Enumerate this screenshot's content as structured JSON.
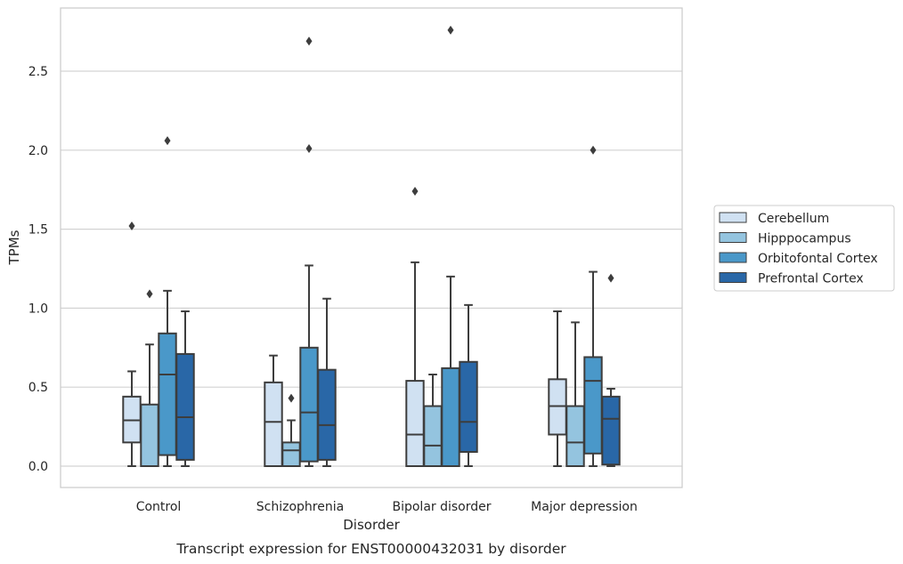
{
  "chart_data": {
    "type": "boxplot",
    "caption": "Transcript expression for ENST00000432031 by disorder",
    "xlabel": "Disorder",
    "ylabel": "TPMs",
    "ylim": [
      -0.13,
      2.9
    ],
    "yticks": [
      0.0,
      0.5,
      1.0,
      1.5,
      2.0,
      2.5
    ],
    "ytick_labels": [
      "0.0",
      "0.5",
      "1.0",
      "1.5",
      "2.0",
      "2.5"
    ],
    "grid": "horizontal",
    "legend_position": "right",
    "categories": [
      "Control",
      "Schizophrenia",
      "Bipolar disorder",
      "Major depression"
    ],
    "series": [
      {
        "name": "Cerebellum",
        "color": "#d0e1f2",
        "boxes": [
          {
            "whisker_low": 0.0,
            "q1": 0.15,
            "median": 0.29,
            "q3": 0.44,
            "whisker_high": 0.6,
            "outliers": [
              1.52
            ]
          },
          {
            "whisker_low": 0.0,
            "q1": 0.0,
            "median": 0.28,
            "q3": 0.53,
            "whisker_high": 0.7,
            "outliers": []
          },
          {
            "whisker_low": 0.0,
            "q1": 0.0,
            "median": 0.2,
            "q3": 0.54,
            "whisker_high": 1.29,
            "outliers": [
              1.74
            ]
          },
          {
            "whisker_low": 0.0,
            "q1": 0.2,
            "median": 0.38,
            "q3": 0.55,
            "whisker_high": 0.98,
            "outliers": []
          }
        ]
      },
      {
        "name": "Hipppocampus",
        "color": "#94c4df",
        "boxes": [
          {
            "whisker_low": 0.0,
            "q1": 0.0,
            "median": 0.0,
            "q3": 0.39,
            "whisker_high": 0.77,
            "outliers": [
              1.09
            ]
          },
          {
            "whisker_low": 0.0,
            "q1": 0.0,
            "median": 0.1,
            "q3": 0.15,
            "whisker_high": 0.29,
            "outliers": [
              0.43
            ]
          },
          {
            "whisker_low": 0.0,
            "q1": 0.0,
            "median": 0.13,
            "q3": 0.38,
            "whisker_high": 0.58,
            "outliers": []
          },
          {
            "whisker_low": 0.0,
            "q1": 0.0,
            "median": 0.15,
            "q3": 0.38,
            "whisker_high": 0.91,
            "outliers": []
          }
        ]
      },
      {
        "name": "Orbitofontal Cortex",
        "color": "#4a98c9",
        "boxes": [
          {
            "whisker_low": 0.0,
            "q1": 0.07,
            "median": 0.58,
            "q3": 0.84,
            "whisker_high": 1.11,
            "outliers": [
              2.06
            ]
          },
          {
            "whisker_low": 0.0,
            "q1": 0.03,
            "median": 0.34,
            "q3": 0.75,
            "whisker_high": 1.27,
            "outliers": [
              2.01,
              2.69
            ]
          },
          {
            "whisker_low": 0.0,
            "q1": 0.0,
            "median": 0.0,
            "q3": 0.62,
            "whisker_high": 1.2,
            "outliers": [
              2.76
            ]
          },
          {
            "whisker_low": 0.0,
            "q1": 0.08,
            "median": 0.54,
            "q3": 0.69,
            "whisker_high": 1.23,
            "outliers": [
              2.0
            ]
          }
        ]
      },
      {
        "name": "Prefrontal Cortex",
        "color": "#2967a7",
        "boxes": [
          {
            "whisker_low": 0.0,
            "q1": 0.04,
            "median": 0.31,
            "q3": 0.71,
            "whisker_high": 0.98,
            "outliers": []
          },
          {
            "whisker_low": 0.0,
            "q1": 0.04,
            "median": 0.26,
            "q3": 0.61,
            "whisker_high": 1.06,
            "outliers": []
          },
          {
            "whisker_low": 0.0,
            "q1": 0.09,
            "median": 0.28,
            "q3": 0.66,
            "whisker_high": 1.02,
            "outliers": []
          },
          {
            "whisker_low": 0.0,
            "q1": 0.01,
            "median": 0.3,
            "q3": 0.44,
            "whisker_high": 0.49,
            "outliers": [
              1.19
            ]
          }
        ]
      }
    ]
  }
}
